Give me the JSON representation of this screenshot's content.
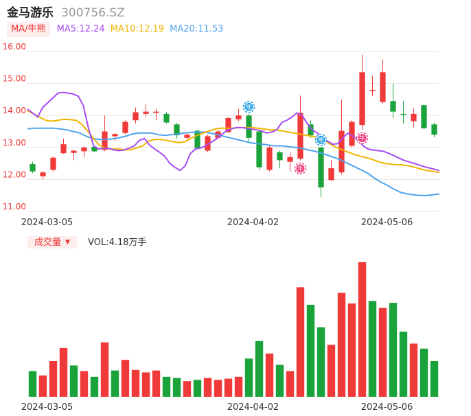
{
  "header": {
    "name": "金马游乐",
    "code": "300756.SZ"
  },
  "ma_legend": {
    "toggle_label": "MA/牛熊",
    "items": [
      {
        "label": "MA5:12.24",
        "color": "#a64bf4"
      },
      {
        "label": "MA10:12.19",
        "color": "#f0b400"
      },
      {
        "label": "MA20:11.53",
        "color": "#4da3ee"
      }
    ]
  },
  "volume_legend": {
    "toggle_label": "成交量",
    "dropdown_icon": "triangle-down-icon",
    "label": "VOL:4.18万手"
  },
  "colors": {
    "up": "#f03a3a",
    "down": "#1aa33a",
    "axis_label": "#e33",
    "grid": "#e6e6e6"
  },
  "chart_data": [
    {
      "type": "candlestick",
      "ylim": [
        11.0,
        16.0
      ],
      "yticks": [
        "16.00",
        "15.00",
        "14.00",
        "13.00",
        "12.00",
        "11.00"
      ],
      "x_labels": [
        "2024-03-05",
        "2024-04-02",
        "2024-05-06"
      ],
      "candles": [
        {
          "date": "2024-03-04",
          "open": 12.48,
          "close": 12.25,
          "high": 12.55,
          "low": 12.2
        },
        {
          "date": "2024-03-05",
          "open": 12.1,
          "close": 12.22,
          "high": 12.26,
          "low": 12.0
        },
        {
          "date": "2024-03-06",
          "open": 12.3,
          "close": 12.68,
          "high": 12.72,
          "low": 12.25
        },
        {
          "date": "2024-03-07",
          "open": 12.82,
          "close": 13.1,
          "high": 13.28,
          "low": 12.8
        },
        {
          "date": "2024-03-08",
          "open": 12.83,
          "close": 12.9,
          "high": 12.93,
          "low": 12.6
        },
        {
          "date": "2024-03-11",
          "open": 12.88,
          "close": 13.0,
          "high": 13.05,
          "low": 12.7
        },
        {
          "date": "2024-03-12",
          "open": 13.02,
          "close": 12.88,
          "high": 13.03,
          "low": 12.85
        },
        {
          "date": "2024-03-13",
          "open": 12.92,
          "close": 13.5,
          "high": 14.0,
          "low": 12.88
        },
        {
          "date": "2024-03-14",
          "open": 13.35,
          "close": 13.42,
          "high": 13.45,
          "low": 13.2
        },
        {
          "date": "2024-03-15",
          "open": 13.45,
          "close": 13.8,
          "high": 13.85,
          "low": 13.4
        },
        {
          "date": "2024-03-18",
          "open": 13.85,
          "close": 14.1,
          "high": 14.25,
          "low": 13.75
        },
        {
          "date": "2024-03-19",
          "open": 14.05,
          "close": 14.12,
          "high": 14.35,
          "low": 13.95
        },
        {
          "date": "2024-03-20",
          "open": 14.08,
          "close": 14.12,
          "high": 14.2,
          "low": 13.85
        },
        {
          "date": "2024-03-21",
          "open": 14.05,
          "close": 13.78,
          "high": 14.1,
          "low": 13.75
        },
        {
          "date": "2024-03-22",
          "open": 13.72,
          "close": 13.38,
          "high": 13.77,
          "low": 13.28
        },
        {
          "date": "2024-03-25",
          "open": 13.3,
          "close": 13.4,
          "high": 13.45,
          "low": 13.25
        },
        {
          "date": "2024-03-26",
          "open": 13.52,
          "close": 12.98,
          "high": 13.55,
          "low": 12.95
        },
        {
          "date": "2024-03-27",
          "open": 12.9,
          "close": 13.35,
          "high": 13.4,
          "low": 12.85
        },
        {
          "date": "2024-03-28",
          "open": 13.3,
          "close": 13.5,
          "high": 13.55,
          "low": 13.25
        },
        {
          "date": "2024-03-29",
          "open": 13.48,
          "close": 13.92,
          "high": 13.96,
          "low": 13.45
        },
        {
          "date": "2024-04-01",
          "open": 13.88,
          "close": 14.0,
          "high": 14.2,
          "low": 13.82
        },
        {
          "date": "2024-04-02",
          "open": 14.0,
          "close": 13.3,
          "high": 14.05,
          "low": 13.15
        },
        {
          "date": "2024-04-03",
          "open": 13.5,
          "close": 12.38,
          "high": 13.55,
          "low": 12.3
        },
        {
          "date": "2024-04-08",
          "open": 12.3,
          "close": 13.0,
          "high": 13.05,
          "low": 12.25
        },
        {
          "date": "2024-04-09",
          "open": 12.85,
          "close": 12.6,
          "high": 12.9,
          "low": 12.35
        },
        {
          "date": "2024-04-10",
          "open": 12.55,
          "close": 12.7,
          "high": 12.85,
          "low": 12.25
        },
        {
          "date": "2024-04-11",
          "open": 12.65,
          "close": 14.08,
          "high": 14.62,
          "low": 12.6
        },
        {
          "date": "2024-04-12",
          "open": 13.72,
          "close": 13.38,
          "high": 13.85,
          "low": 13.3
        },
        {
          "date": "2024-04-15",
          "open": 13.0,
          "close": 11.75,
          "high": 13.02,
          "low": 11.45
        },
        {
          "date": "2024-04-16",
          "open": 11.98,
          "close": 12.35,
          "high": 12.6,
          "low": 11.95
        },
        {
          "date": "2024-04-17",
          "open": 12.22,
          "close": 13.52,
          "high": 14.5,
          "low": 12.15
        },
        {
          "date": "2024-04-18",
          "open": 13.05,
          "close": 13.8,
          "high": 13.85,
          "low": 13.0
        },
        {
          "date": "2024-04-19",
          "open": 13.7,
          "close": 15.35,
          "high": 15.9,
          "low": 13.55
        },
        {
          "date": "2024-04-22",
          "open": 14.8,
          "close": 14.8,
          "high": 15.25,
          "low": 14.6
        },
        {
          "date": "2024-04-23",
          "open": 14.42,
          "close": 15.35,
          "high": 15.75,
          "low": 14.35
        },
        {
          "date": "2024-04-24",
          "open": 14.45,
          "close": 14.12,
          "high": 15.0,
          "low": 13.92
        },
        {
          "date": "2024-04-25",
          "open": 14.05,
          "close": 14.02,
          "high": 14.45,
          "low": 13.75
        },
        {
          "date": "2024-04-26",
          "open": 13.82,
          "close": 14.05,
          "high": 14.22,
          "low": 13.62
        },
        {
          "date": "2024-04-29",
          "open": 14.32,
          "close": 13.6,
          "high": 14.35,
          "low": 13.58
        },
        {
          "date": "2024-04-30",
          "open": 13.72,
          "close": 13.4,
          "high": 13.78,
          "low": 13.32
        }
      ],
      "ma5": [
        14.2,
        14.08,
        13.95,
        14.25,
        14.4,
        14.55,
        14.7,
        14.72,
        14.7,
        14.67,
        14.6,
        14.3,
        13.6,
        13.05,
        12.95,
        12.98,
        12.97,
        12.92,
        12.9,
        12.92,
        12.98,
        13.05,
        13.22,
        13.28,
        13.08,
        12.95,
        12.85,
        12.72,
        12.5,
        12.38,
        12.28,
        12.42,
        12.8,
        12.95,
        12.98,
        13.05,
        13.15,
        13.25,
        13.38,
        13.5,
        13.58,
        13.62,
        13.62,
        13.6,
        13.58,
        13.55,
        13.52,
        13.45,
        13.48,
        13.55,
        13.78,
        13.85,
        13.95,
        14.08,
        14.0,
        13.75,
        13.55,
        13.45,
        13.3,
        13.2,
        13.1,
        13.12,
        13.3,
        13.45,
        13.35,
        13.22,
        13.05,
        12.95,
        12.92,
        12.9,
        12.88,
        12.82,
        12.75,
        12.67,
        12.6,
        12.55,
        12.5,
        12.45,
        12.4,
        12.36,
        12.32,
        12.28
      ],
      "ma10": [
        14.15,
        14.05,
        13.95,
        13.85,
        13.82,
        13.85,
        13.88,
        13.87,
        13.85,
        13.72,
        13.5,
        13.25,
        13.05,
        12.97,
        12.95,
        12.95,
        12.93,
        12.93,
        12.98,
        13.05,
        13.2,
        13.25,
        13.25,
        13.22,
        13.18,
        13.15,
        13.18,
        13.28,
        13.38,
        13.45,
        13.52,
        13.58,
        13.6,
        13.6,
        13.6,
        13.62,
        13.62,
        13.62,
        13.6,
        13.58,
        13.55,
        13.55,
        13.52,
        13.48,
        13.45,
        13.42,
        13.38,
        13.35,
        13.3,
        13.22,
        13.1,
        13.0,
        12.92,
        12.85,
        12.78,
        12.72,
        12.68,
        12.62,
        12.55,
        12.5,
        12.48,
        12.46,
        12.45,
        12.42,
        12.38,
        12.32,
        12.28,
        12.25,
        12.22
      ],
      "ma20": [
        13.58,
        13.6,
        13.6,
        13.6,
        13.6,
        13.58,
        13.55,
        13.5,
        13.45,
        13.35,
        13.28,
        13.25,
        13.25,
        13.27,
        13.3,
        13.35,
        13.42,
        13.45,
        13.45,
        13.45,
        13.4,
        13.38,
        13.4,
        13.42,
        13.45,
        13.47,
        13.48,
        13.48,
        13.45,
        13.4,
        13.35,
        13.3,
        13.25,
        13.2,
        13.15,
        13.12,
        13.1,
        13.07,
        13.05,
        13.05,
        13.02,
        13.0,
        12.97,
        12.92,
        12.88,
        12.82,
        12.75,
        12.68,
        12.6,
        12.5,
        12.4,
        12.3,
        12.2,
        12.05,
        11.92,
        11.82,
        11.7,
        11.6,
        11.55,
        11.52,
        11.5,
        11.5,
        11.52,
        11.55
      ],
      "markers": [
        {
          "index": 21,
          "kind": "bear",
          "text": "熊",
          "position": "above"
        },
        {
          "index": 26,
          "kind": "bull",
          "text": "牛",
          "position": "below"
        },
        {
          "index": 28,
          "kind": "bear",
          "text": "熊",
          "position": "above"
        },
        {
          "index": 32,
          "kind": "bull",
          "text": "牛",
          "position": "below"
        }
      ]
    },
    {
      "type": "bar",
      "title": "成交量",
      "x_labels": [
        "2024-03-05",
        "2024-04-02",
        "2024-05-06"
      ],
      "unit": "万手",
      "values": [
        2.05,
        1.7,
        2.85,
        3.9,
        2.5,
        2.05,
        1.6,
        4.35,
        2.1,
        2.95,
        2.15,
        1.95,
        2.1,
        1.6,
        1.5,
        1.25,
        1.35,
        1.5,
        1.35,
        1.45,
        1.6,
        3.05,
        4.45,
        3.45,
        2.55,
        2.05,
        8.75,
        7.35,
        5.55,
        4.15,
        8.3,
        7.45,
        10.75,
        7.65,
        7.1,
        7.5,
        5.2,
        4.25,
        3.85,
        2.85
      ],
      "directions": [
        "down",
        "up",
        "up",
        "up",
        "down",
        "up",
        "down",
        "up",
        "down",
        "up",
        "up",
        "up",
        "up",
        "down",
        "down",
        "up",
        "down",
        "up",
        "up",
        "up",
        "up",
        "down",
        "down",
        "up",
        "down",
        "up",
        "up",
        "down",
        "down",
        "up",
        "up",
        "up",
        "up",
        "down",
        "up",
        "down",
        "down",
        "up",
        "down",
        "down"
      ]
    }
  ]
}
